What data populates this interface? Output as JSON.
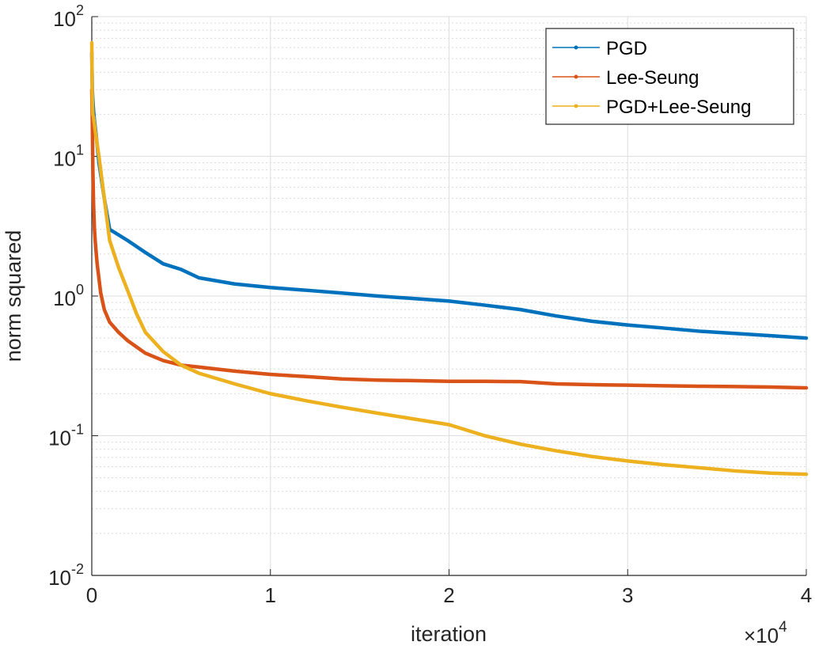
{
  "chart_data": {
    "type": "line",
    "xlabel": "iteration",
    "ylabel": "norm squared",
    "x_multiplier_label": {
      "base": "×10",
      "exponent": "4"
    },
    "xlim": [
      0,
      40000
    ],
    "ylim": [
      0.01,
      100
    ],
    "yscale": "log",
    "grid": true,
    "legend_position": "top-right",
    "x_ticks": [
      {
        "value": 0,
        "label": "0"
      },
      {
        "value": 10000,
        "label": "1"
      },
      {
        "value": 20000,
        "label": "2"
      },
      {
        "value": 30000,
        "label": "3"
      },
      {
        "value": 40000,
        "label": "4"
      }
    ],
    "y_ticks": [
      {
        "value": 0.01,
        "base": "10",
        "exponent": "-2"
      },
      {
        "value": 0.1,
        "base": "10",
        "exponent": "-1"
      },
      {
        "value": 1,
        "base": "10",
        "exponent": "0"
      },
      {
        "value": 10,
        "base": "10",
        "exponent": "1"
      },
      {
        "value": 100,
        "base": "10",
        "exponent": "2"
      }
    ],
    "series": [
      {
        "name": "PGD",
        "color": "#0072BD",
        "x": [
          0,
          15,
          30,
          60,
          100,
          150,
          250,
          400,
          700,
          1000,
          2000,
          3000,
          4000,
          5000,
          6000,
          8000,
          10000,
          12000,
          14000,
          16000,
          18000,
          20000,
          22000,
          24000,
          26000,
          28000,
          30000,
          32000,
          34000,
          36000,
          38000,
          40000
        ],
        "y": [
          55,
          40,
          30,
          25,
          21,
          18,
          14,
          9,
          5,
          3.0,
          2.5,
          2.05,
          1.7,
          1.55,
          1.35,
          1.22,
          1.15,
          1.1,
          1.05,
          1.0,
          0.96,
          0.92,
          0.86,
          0.8,
          0.72,
          0.66,
          0.62,
          0.59,
          0.56,
          0.54,
          0.52,
          0.5
        ]
      },
      {
        "name": "Lee-Seung",
        "color": "#D95319",
        "x": [
          0,
          30,
          60,
          100,
          150,
          200,
          300,
          500,
          700,
          1000,
          1500,
          2000,
          3000,
          4000,
          5000,
          6000,
          8000,
          10000,
          12000,
          14000,
          16000,
          18000,
          20000,
          22000,
          24000,
          26000,
          28000,
          30000,
          32000,
          34000,
          36000,
          38000,
          40000
        ],
        "y": [
          30,
          18,
          8,
          4.5,
          3.0,
          2.4,
          1.7,
          1.05,
          0.8,
          0.65,
          0.55,
          0.48,
          0.39,
          0.345,
          0.32,
          0.31,
          0.29,
          0.275,
          0.265,
          0.255,
          0.25,
          0.248,
          0.245,
          0.245,
          0.244,
          0.235,
          0.232,
          0.23,
          0.228,
          0.226,
          0.225,
          0.223,
          0.22
        ]
      },
      {
        "name": "PGD+Lee-Seung",
        "color": "#EDB120",
        "x": [
          0,
          15,
          30,
          60,
          100,
          200,
          400,
          700,
          1000,
          1500,
          2000,
          2500,
          3000,
          4000,
          5000,
          6000,
          8000,
          10000,
          12000,
          14000,
          16000,
          18000,
          20000,
          22000,
          24000,
          26000,
          28000,
          30000,
          32000,
          34000,
          36000,
          38000,
          40000
        ],
        "y": [
          65,
          40,
          25,
          20,
          19,
          15,
          10,
          5,
          2.5,
          1.6,
          1.1,
          0.75,
          0.55,
          0.4,
          0.32,
          0.28,
          0.235,
          0.2,
          0.178,
          0.16,
          0.145,
          0.132,
          0.12,
          0.1,
          0.087,
          0.078,
          0.071,
          0.066,
          0.062,
          0.059,
          0.056,
          0.054,
          0.053
        ]
      }
    ]
  }
}
